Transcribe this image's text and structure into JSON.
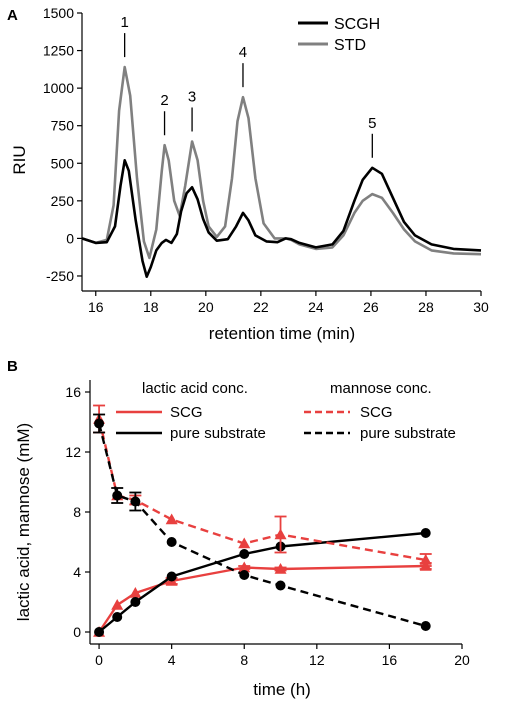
{
  "chart_data": [
    {
      "panel": "A",
      "type": "line",
      "xlabel": "retention time (min)",
      "ylabel": "RIU",
      "xlim": [
        15.5,
        30
      ],
      "ylim": [
        -350,
        1500
      ],
      "xticks": [
        16,
        18,
        20,
        22,
        24,
        26,
        28,
        30
      ],
      "yticks": [
        -250,
        0,
        250,
        500,
        750,
        1000,
        1250,
        1500
      ],
      "legend_position": "top-right",
      "peak_labels": [
        {
          "label": "1",
          "x": 17.05,
          "y": 1140
        },
        {
          "label": "2",
          "x": 18.5,
          "y": 620
        },
        {
          "label": "3",
          "x": 19.5,
          "y": 645
        },
        {
          "label": "4",
          "x": 21.35,
          "y": 940
        },
        {
          "label": "5",
          "x": 26.05,
          "y": 470
        }
      ],
      "series": [
        {
          "name": "SCGH",
          "color": "#000000",
          "x": [
            15.5,
            16.0,
            16.4,
            16.7,
            16.9,
            17.05,
            17.2,
            17.45,
            17.7,
            17.85,
            18.0,
            18.2,
            18.4,
            18.55,
            18.75,
            18.95,
            19.1,
            19.3,
            19.5,
            19.7,
            19.9,
            20.1,
            20.4,
            20.8,
            21.1,
            21.35,
            21.55,
            21.8,
            22.2,
            22.6,
            22.9,
            23.1,
            23.4,
            24.0,
            24.6,
            25.0,
            25.4,
            25.7,
            26.05,
            26.4,
            26.8,
            27.2,
            27.6,
            28.2,
            29.0,
            30.0
          ],
          "y": [
            0,
            -30,
            -25,
            80,
            350,
            520,
            450,
            120,
            -150,
            -255,
            -190,
            -80,
            -30,
            -10,
            -30,
            30,
            180,
            300,
            340,
            260,
            130,
            40,
            -15,
            -5,
            80,
            170,
            120,
            20,
            -20,
            -25,
            0,
            -5,
            -30,
            -60,
            -40,
            50,
            250,
            390,
            470,
            430,
            270,
            110,
            20,
            -40,
            -70,
            -80
          ]
        },
        {
          "name": "STD",
          "color": "#808080",
          "x": [
            15.5,
            16.0,
            16.4,
            16.65,
            16.85,
            17.05,
            17.25,
            17.5,
            17.75,
            17.95,
            18.2,
            18.4,
            18.5,
            18.65,
            18.85,
            19.05,
            19.25,
            19.5,
            19.7,
            19.9,
            20.1,
            20.4,
            20.7,
            20.95,
            21.15,
            21.35,
            21.55,
            21.8,
            22.1,
            22.5,
            22.9,
            23.1,
            23.4,
            24.0,
            24.6,
            25.0,
            25.4,
            25.7,
            26.05,
            26.4,
            26.8,
            27.2,
            27.6,
            28.2,
            29.0,
            30.0
          ],
          "y": [
            0,
            -30,
            -10,
            220,
            850,
            1140,
            950,
            400,
            -20,
            -130,
            60,
            450,
            620,
            520,
            250,
            150,
            350,
            645,
            520,
            250,
            80,
            10,
            80,
            400,
            780,
            940,
            800,
            400,
            100,
            0,
            0,
            -10,
            -40,
            -70,
            -60,
            20,
            170,
            250,
            295,
            270,
            170,
            60,
            -20,
            -80,
            -100,
            -105
          ]
        }
      ]
    },
    {
      "panel": "B",
      "type": "line",
      "xlabel": "time (h)",
      "ylabel": "lactic acid, mannose (mM)",
      "xlim": [
        -0.5,
        20
      ],
      "ylim": [
        -0.8,
        16.8
      ],
      "xticks": [
        0,
        4,
        8,
        12,
        16,
        20
      ],
      "yticks": [
        0,
        4,
        8,
        12,
        16
      ],
      "legend_position": "top",
      "legend_groups": [
        "lactic acid conc.",
        "mannose conc."
      ],
      "series": [
        {
          "name": "SCG",
          "group": "lactic acid conc.",
          "color": "#e8403f",
          "line": "solid",
          "marker": "triangle",
          "x": [
            0,
            1,
            2,
            4,
            8,
            10,
            18
          ],
          "y": [
            0,
            1.8,
            2.6,
            3.4,
            4.3,
            4.2,
            4.4
          ],
          "error": [
            0,
            0,
            0,
            0.2,
            0.1,
            0.1,
            0.2
          ]
        },
        {
          "name": "pure substrate",
          "group": "lactic acid conc.",
          "color": "#000000",
          "line": "solid",
          "marker": "circle",
          "x": [
            0,
            1,
            2,
            4,
            8,
            10,
            18
          ],
          "y": [
            0,
            1.0,
            2.0,
            3.7,
            5.2,
            5.7,
            6.6
          ],
          "error": [
            0,
            0,
            0,
            0,
            0,
            0,
            0
          ]
        },
        {
          "name": "SCG",
          "group": "mannose conc.",
          "color": "#e8403f",
          "line": "dashed",
          "marker": "triangle",
          "x": [
            0,
            1,
            2,
            4,
            8,
            10,
            18
          ],
          "y": [
            14.2,
            9.1,
            8.8,
            7.5,
            5.9,
            6.5,
            4.8
          ],
          "error": [
            0.9,
            0,
            0.3,
            0,
            0,
            1.2,
            0.4
          ]
        },
        {
          "name": "pure substrate",
          "group": "mannose conc.",
          "color": "#000000",
          "line": "dashed",
          "marker": "circle",
          "x": [
            0,
            1,
            2,
            4,
            8,
            10,
            18
          ],
          "y": [
            13.9,
            9.1,
            8.7,
            6.0,
            3.8,
            3.1,
            0.4
          ],
          "error": [
            0.6,
            0.5,
            0.6,
            0,
            0,
            0,
            0
          ]
        }
      ]
    }
  ]
}
